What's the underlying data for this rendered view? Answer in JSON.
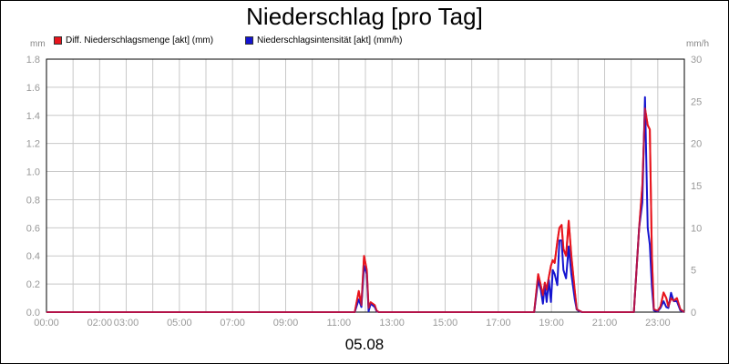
{
  "title": "Niederschlag [pro Tag]",
  "unit_left": "mm",
  "unit_right": "mm/h",
  "date_label": "05.08",
  "legend": {
    "series1": "Diff. Niederschlagsmenge [akt] (mm)",
    "series2": "Niederschlagsintensität [akt] (mm/h)"
  },
  "colors": {
    "series1": "#e8141c",
    "series2": "#1414d0",
    "grid": "#c8c8c8",
    "axis_text": "#999999"
  },
  "chart_data": {
    "type": "line",
    "title": "Niederschlag [pro Tag]",
    "xlabel": "",
    "ylabel": "mm",
    "y2label": "mm/h",
    "ylim": [
      0,
      1.8
    ],
    "y2lim": [
      0,
      30
    ],
    "xlim_hours": [
      0,
      24
    ],
    "grid": true,
    "legend_position": "top-left",
    "y_ticks": [
      "0.0",
      "0.2",
      "0.4",
      "0.6",
      "0.8",
      "1.0",
      "1.2",
      "1.4",
      "1.6",
      "1.8"
    ],
    "y2_ticks": [
      "0",
      "5",
      "10",
      "15",
      "20",
      "25",
      "30"
    ],
    "x_ticks": [
      {
        "label": "00:00",
        "hour": 0
      },
      {
        "label": "02:00",
        "hour": 2
      },
      {
        "label": "03:00",
        "hour": 3
      },
      {
        "label": "05:00",
        "hour": 5
      },
      {
        "label": "07:00",
        "hour": 7
      },
      {
        "label": "09:00",
        "hour": 9
      },
      {
        "label": "11:00",
        "hour": 11
      },
      {
        "label": "13:00",
        "hour": 13
      },
      {
        "label": "15:00",
        "hour": 15
      },
      {
        "label": "17:00",
        "hour": 17
      },
      {
        "label": "19:00",
        "hour": 19
      },
      {
        "label": "21:00",
        "hour": 21
      },
      {
        "label": "23:00",
        "hour": 23
      }
    ],
    "series": [
      {
        "name": "Diff. Niederschlagsmenge [akt] (mm)",
        "axis": "left",
        "color": "#e8141c",
        "points": [
          [
            0,
            0
          ],
          [
            11.6,
            0
          ],
          [
            11.75,
            0.15
          ],
          [
            11.85,
            0.05
          ],
          [
            11.95,
            0.4
          ],
          [
            12.05,
            0.3
          ],
          [
            12.12,
            0.03
          ],
          [
            12.2,
            0.07
          ],
          [
            12.35,
            0.05
          ],
          [
            12.42,
            0.01
          ],
          [
            12.5,
            0
          ],
          [
            18.35,
            0
          ],
          [
            18.5,
            0.27
          ],
          [
            18.6,
            0.19
          ],
          [
            18.68,
            0.12
          ],
          [
            18.75,
            0.21
          ],
          [
            18.82,
            0.16
          ],
          [
            18.9,
            0.25
          ],
          [
            18.98,
            0.33
          ],
          [
            19.05,
            0.37
          ],
          [
            19.12,
            0.35
          ],
          [
            19.22,
            0.5
          ],
          [
            19.3,
            0.6
          ],
          [
            19.38,
            0.62
          ],
          [
            19.45,
            0.45
          ],
          [
            19.55,
            0.4
          ],
          [
            19.65,
            0.65
          ],
          [
            19.75,
            0.4
          ],
          [
            19.88,
            0.15
          ],
          [
            19.95,
            0.02
          ],
          [
            20.05,
            0.01
          ],
          [
            20.15,
            0
          ],
          [
            22.1,
            0
          ],
          [
            22.3,
            0.6
          ],
          [
            22.42,
            0.9
          ],
          [
            22.52,
            1.45
          ],
          [
            22.62,
            1.33
          ],
          [
            22.7,
            1.3
          ],
          [
            22.78,
            0.4
          ],
          [
            22.85,
            0.02
          ],
          [
            23.0,
            0.01
          ],
          [
            23.1,
            0.04
          ],
          [
            23.22,
            0.14
          ],
          [
            23.32,
            0.1
          ],
          [
            23.4,
            0.04
          ],
          [
            23.5,
            0.1
          ],
          [
            23.6,
            0.08
          ],
          [
            23.72,
            0.1
          ],
          [
            23.85,
            0.02
          ],
          [
            24,
            0
          ]
        ]
      },
      {
        "name": "Niederschlagsintensität [akt] (mm/h)",
        "axis": "right",
        "color": "#1414d0",
        "points": [
          [
            0,
            0
          ],
          [
            11.6,
            0
          ],
          [
            11.75,
            1.5
          ],
          [
            11.85,
            0.6
          ],
          [
            11.95,
            5.5
          ],
          [
            12.05,
            4.5
          ],
          [
            12.12,
            0.1
          ],
          [
            12.2,
            1.0
          ],
          [
            12.35,
            0.6
          ],
          [
            12.42,
            0.1
          ],
          [
            12.5,
            0
          ],
          [
            18.35,
            0
          ],
          [
            18.5,
            3.8
          ],
          [
            18.6,
            2.6
          ],
          [
            18.68,
            1.0
          ],
          [
            18.75,
            3.2
          ],
          [
            18.82,
            1.2
          ],
          [
            18.9,
            3.8
          ],
          [
            18.98,
            1.2
          ],
          [
            19.05,
            5.0
          ],
          [
            19.12,
            4.5
          ],
          [
            19.22,
            3.2
          ],
          [
            19.3,
            8.5
          ],
          [
            19.38,
            8.5
          ],
          [
            19.45,
            5.0
          ],
          [
            19.55,
            4.0
          ],
          [
            19.65,
            7.8
          ],
          [
            19.75,
            4.5
          ],
          [
            19.88,
            1.5
          ],
          [
            19.95,
            0.3
          ],
          [
            20.05,
            0.1
          ],
          [
            20.15,
            0
          ],
          [
            22.1,
            0
          ],
          [
            22.3,
            10.0
          ],
          [
            22.42,
            13.0
          ],
          [
            22.52,
            25.5
          ],
          [
            22.62,
            10.0
          ],
          [
            22.7,
            8.0
          ],
          [
            22.78,
            3.0
          ],
          [
            22.85,
            0.2
          ],
          [
            23.0,
            0.1
          ],
          [
            23.1,
            0.5
          ],
          [
            23.22,
            1.3
          ],
          [
            23.32,
            0.6
          ],
          [
            23.4,
            0.5
          ],
          [
            23.5,
            2.3
          ],
          [
            23.6,
            1.3
          ],
          [
            23.72,
            1.3
          ],
          [
            23.85,
            0.2
          ],
          [
            24,
            0
          ]
        ]
      }
    ]
  }
}
